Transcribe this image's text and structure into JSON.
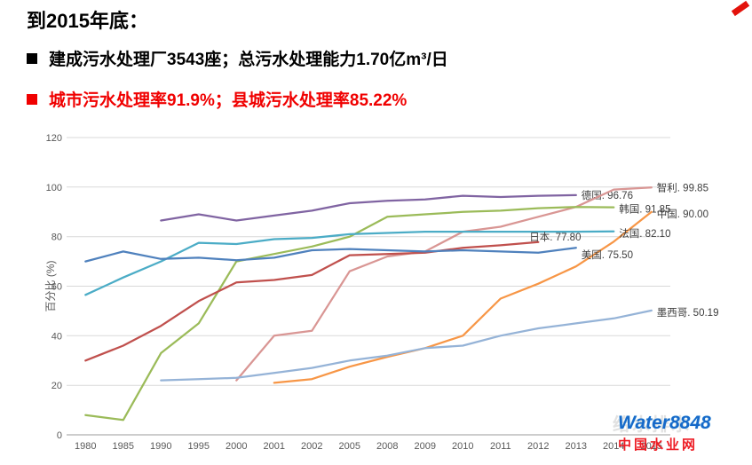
{
  "header": {
    "title": "到2015年底：",
    "bullets": [
      {
        "marker_color": "#000000",
        "text_color": "#000000",
        "text": "建成污水处理厂3543座；总污水处理能力1.70亿m³/日"
      },
      {
        "marker_color": "#FF0000",
        "text_color": "#FF0000",
        "text": "城市污水处理率91.9%；县城污水处理率85.22%"
      }
    ],
    "corner_accent_color": "#E3120B"
  },
  "chart_data": {
    "type": "line",
    "title": "",
    "xlabel": "",
    "ylabel": "百分比 (%)",
    "ylim": [
      0,
      120
    ],
    "yticks": [
      0,
      20,
      40,
      60,
      80,
      100,
      120
    ],
    "grid": true,
    "legend_position": "end-of-line data labels",
    "categories": [
      "1980",
      "1985",
      "1990",
      "1995",
      "2000",
      "2001",
      "2002",
      "2005",
      "2008",
      "2009",
      "2010",
      "2011",
      "2012",
      "2013",
      "2014",
      "2015"
    ],
    "series": [
      {
        "name": "德国",
        "end_label": "德国. 96.76",
        "end_value": 96.76,
        "color": "#8064A2",
        "label_dx": 6,
        "label_dy": 0,
        "values": [
          null,
          null,
          86.5,
          89,
          86.5,
          88.5,
          90.5,
          93.5,
          94.5,
          95,
          96.5,
          96,
          96.5,
          96.76,
          null,
          null
        ]
      },
      {
        "name": "智利",
        "end_label": "智利. 99.85",
        "end_value": 99.85,
        "color": "#D99694",
        "label_dx": 6,
        "label_dy": 0,
        "values": [
          null,
          null,
          null,
          null,
          22,
          40,
          42,
          66,
          72,
          74,
          82,
          84,
          88,
          92,
          99,
          99.85
        ]
      },
      {
        "name": "韩国",
        "end_label": "韩国. 91.85",
        "end_value": 91.85,
        "color": "#9BBB59",
        "label_dx": 6,
        "label_dy": 2,
        "values": [
          8,
          6,
          33,
          45,
          70,
          73,
          76,
          80,
          88,
          89,
          90,
          90.5,
          91.5,
          92,
          91.85,
          null
        ]
      },
      {
        "name": "中国",
        "end_label": "中国. 90.00",
        "end_value": 90.0,
        "color": "#F79646",
        "label_dx": 6,
        "label_dy": 2,
        "values": [
          null,
          null,
          null,
          null,
          null,
          21,
          22.5,
          27.5,
          31.5,
          35,
          40,
          55,
          61,
          68,
          78,
          90
        ]
      },
      {
        "name": "法国",
        "end_label": "法国. 82.10",
        "end_value": 82.1,
        "color": "#4BACC6",
        "label_dx": 6,
        "label_dy": 2,
        "values": [
          56.5,
          63.5,
          70,
          77.5,
          77,
          79,
          79.5,
          81,
          81.5,
          82,
          82,
          82,
          82,
          82,
          82.1,
          null
        ]
      },
      {
        "name": "日本",
        "end_label": "日本. 77.80",
        "end_value": 77.8,
        "color": "#C0504D",
        "label_dx": -10,
        "label_dy": -6,
        "values": [
          30,
          36,
          44,
          54,
          61.5,
          62.5,
          64.5,
          72.5,
          73,
          73.5,
          75.5,
          76.5,
          77.8,
          null,
          null,
          null
        ]
      },
      {
        "name": "美国",
        "end_label": "美国. 75.50",
        "end_value": 75.5,
        "color": "#4F81BD",
        "label_dx": 6,
        "label_dy": 8,
        "values": [
          70,
          74,
          71,
          71.5,
          70.5,
          71.5,
          74.5,
          75,
          74.5,
          74,
          74.5,
          74,
          73.5,
          75.5,
          null,
          null
        ]
      },
      {
        "name": "墨西哥",
        "end_label": "墨西哥. 50.19",
        "end_value": 50.19,
        "color": "#95B3D7",
        "label_dx": 6,
        "label_dy": 2,
        "values": [
          null,
          null,
          22,
          22.5,
          23,
          25,
          27,
          30,
          32,
          35,
          36,
          40,
          43,
          45,
          47,
          50.19
        ]
      }
    ]
  },
  "watermark": {
    "faint": "给水排水",
    "line1": "Water8848",
    "line1_color": "#1669C9",
    "line2": "中国水业网",
    "line2_color": "#ED1C24"
  }
}
